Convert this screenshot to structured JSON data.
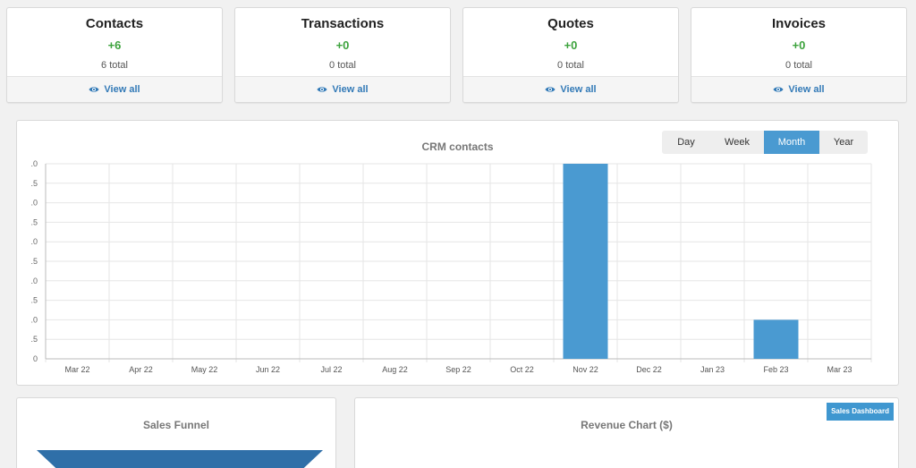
{
  "cards": [
    {
      "title": "Contacts",
      "delta": "+6",
      "total": "6 total",
      "link": "View all"
    },
    {
      "title": "Transactions",
      "delta": "+0",
      "total": "0 total",
      "link": "View all"
    },
    {
      "title": "Quotes",
      "delta": "+0",
      "total": "0 total",
      "link": "View all"
    },
    {
      "title": "Invoices",
      "delta": "+0",
      "total": "0 total",
      "link": "View all"
    }
  ],
  "crm_chart": {
    "title": "CRM contacts",
    "ranges": [
      "Day",
      "Week",
      "Month",
      "Year"
    ],
    "active_range": "Month"
  },
  "sales_funnel": {
    "title": "Sales Funnel"
  },
  "revenue_chart": {
    "title": "Revenue Chart ($)",
    "dashboard_button": "Sales Dashboard"
  },
  "colors": {
    "accent": "#4a9ad1",
    "positive": "#3da33d",
    "link": "#337ab7",
    "funnel": "#2f6fa8"
  },
  "chart_data": {
    "type": "bar",
    "title": "CRM contacts",
    "categories": [
      "Mar 22",
      "Apr 22",
      "May 22",
      "Jun 22",
      "Jul 22",
      "Aug 22",
      "Sep 22",
      "Oct 22",
      "Nov 22",
      "Dec 22",
      "Jan 23",
      "Feb 23",
      "Mar 23"
    ],
    "values": [
      0,
      0,
      0,
      0,
      0,
      0,
      0,
      0,
      5,
      0,
      0,
      1,
      0
    ],
    "y_tick_labels": [
      ".0",
      ".5",
      ".0",
      ".5",
      ".0",
      ".5",
      ".0",
      ".5",
      ".0",
      ".5",
      "0"
    ],
    "ylim": [
      0,
      5
    ],
    "grid": true,
    "legend": "none",
    "color": "#4a9ad1"
  }
}
